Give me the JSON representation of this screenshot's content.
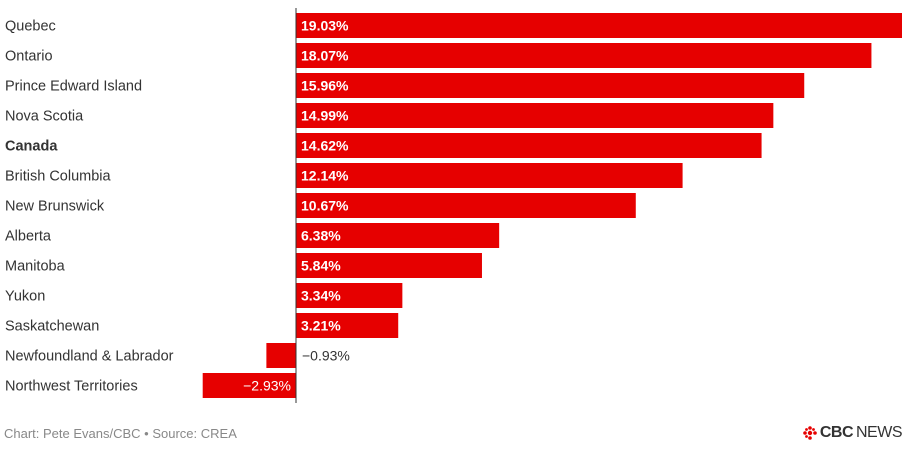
{
  "chart_data": {
    "type": "bar",
    "orientation": "horizontal",
    "categories": [
      "Quebec",
      "Ontario",
      "Prince Edward Island",
      "Nova Scotia",
      "Canada",
      "British Columbia",
      "New Brunswick",
      "Alberta",
      "Manitoba",
      "Yukon",
      "Saskatchewan",
      "Newfoundland & Labrador",
      "Northwest Territories"
    ],
    "bold_categories": [
      "Canada"
    ],
    "values": [
      19.03,
      18.07,
      15.96,
      14.99,
      14.62,
      12.14,
      10.67,
      6.38,
      5.84,
      3.34,
      3.21,
      -0.93,
      -2.93
    ],
    "value_labels": [
      "19.03%",
      "18.07%",
      "15.96%",
      "14.99%",
      "14.62%",
      "12.14%",
      "10.67%",
      "6.38%",
      "5.84%",
      "3.34%",
      "3.21%",
      "−0.93%",
      "−2.93%"
    ],
    "bar_color": "#e60000",
    "xlim": [
      -2.93,
      19.03
    ],
    "grid": false,
    "legend": "none"
  },
  "footer": {
    "source": "Chart: Pete Evans/CBC • Source: CREA"
  },
  "logo": {
    "brand": "CBC",
    "product": "NEWS",
    "icon": "cbc-gem-icon",
    "color": "#e60000"
  }
}
